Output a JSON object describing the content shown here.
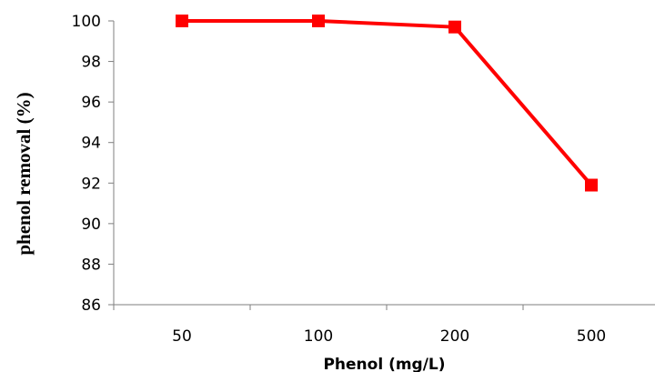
{
  "chart_data": {
    "type": "line",
    "title": "",
    "xlabel": "Phenol (mg/L)",
    "ylabel": "phenol removal (%)",
    "categories": [
      "50",
      "100",
      "200",
      "500"
    ],
    "series": [
      {
        "values": [
          100,
          100,
          99.7,
          91.9
        ],
        "color": "#ff0000",
        "marker": "square"
      }
    ],
    "ylim": [
      86,
      100
    ],
    "yticks": [
      "86",
      "88",
      "90",
      "92",
      "94",
      "96",
      "98",
      "100"
    ],
    "grid": false,
    "legend": "none"
  }
}
